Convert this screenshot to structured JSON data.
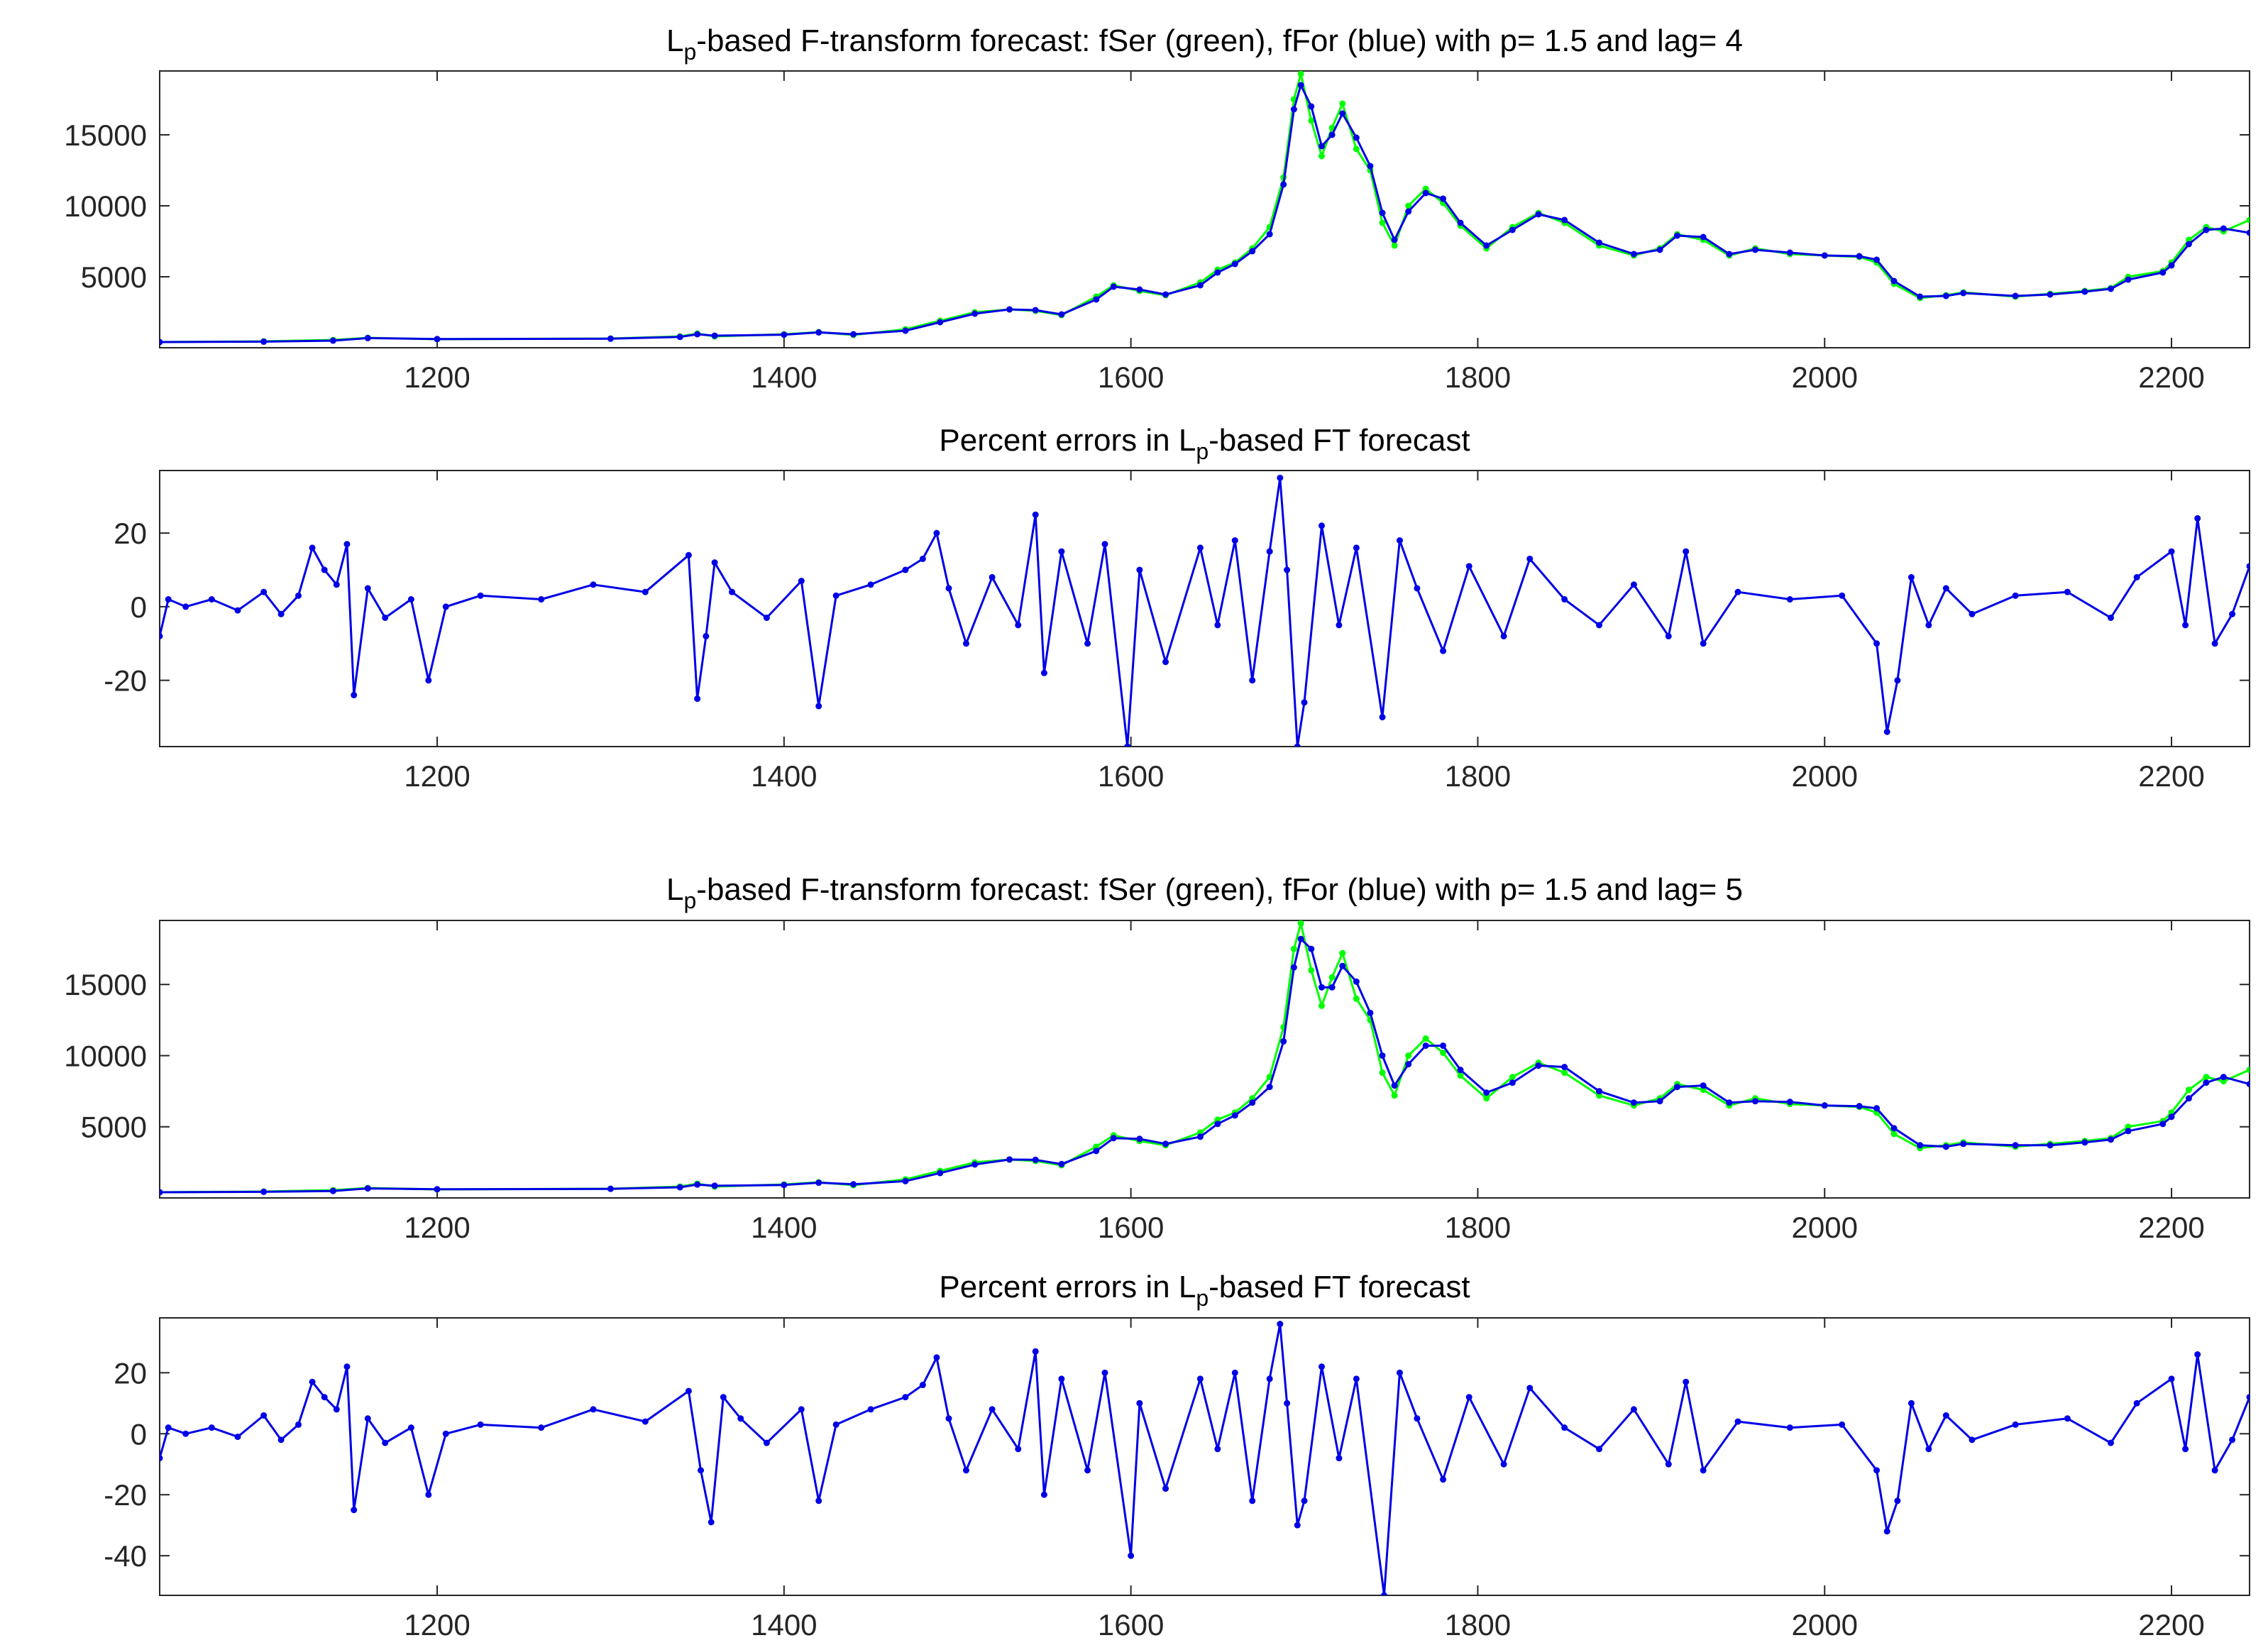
{
  "chart_data": [
    {
      "type": "line",
      "title_parts": [
        "L",
        "p",
        "-based F-transform forecast: fSer (green), fFor (blue)  with p= 1.5 and lag= 4"
      ],
      "xlim": [
        1040,
        2245
      ],
      "ylim": [
        0,
        19500
      ],
      "x_ticks": [
        1200,
        1400,
        1600,
        1800,
        2000,
        2200
      ],
      "y_ticks": [
        5000,
        10000,
        15000
      ],
      "grid": false,
      "series": [
        {
          "color": "#00ff00",
          "marker": "dot",
          "x": [
            1040,
            1100,
            1140,
            1160,
            1200,
            1300,
            1340,
            1350,
            1360,
            1400,
            1420,
            1440,
            1470,
            1490,
            1510,
            1530,
            1545,
            1560,
            1580,
            1590,
            1605,
            1620,
            1640,
            1650,
            1660,
            1670,
            1680,
            1688,
            1694,
            1698,
            1704,
            1710,
            1716,
            1722,
            1730,
            1738,
            1745,
            1752,
            1760,
            1770,
            1780,
            1790,
            1805,
            1820,
            1835,
            1850,
            1870,
            1890,
            1905,
            1915,
            1930,
            1945,
            1960,
            1980,
            2000,
            2020,
            2030,
            2040,
            2055,
            2070,
            2080,
            2110,
            2130,
            2150,
            2165,
            2175,
            2195,
            2200,
            2210,
            2220,
            2230,
            2245
          ],
          "y": [
            400,
            450,
            550,
            700,
            600,
            650,
            800,
            1000,
            800,
            950,
            1100,
            900,
            1300,
            1900,
            2500,
            2700,
            2600,
            2300,
            3600,
            4400,
            4000,
            3700,
            4600,
            5500,
            6000,
            7000,
            8500,
            12000,
            17500,
            19300,
            16000,
            13500,
            15500,
            17200,
            14000,
            12500,
            8800,
            7200,
            10000,
            11200,
            10200,
            8600,
            7000,
            8500,
            9500,
            8800,
            7200,
            6500,
            7000,
            8000,
            7600,
            6500,
            7000,
            6600,
            6500,
            6400,
            6000,
            4500,
            3500,
            3700,
            3900,
            3600,
            3800,
            4000,
            4200,
            5000,
            5400,
            6000,
            7600,
            8500,
            8200,
            9000
          ]
        },
        {
          "color": "#0000e6",
          "marker": "dot",
          "x": [
            1040,
            1100,
            1140,
            1160,
            1200,
            1300,
            1340,
            1350,
            1360,
            1400,
            1420,
            1440,
            1470,
            1490,
            1510,
            1530,
            1545,
            1560,
            1580,
            1590,
            1605,
            1620,
            1640,
            1650,
            1660,
            1670,
            1680,
            1688,
            1694,
            1698,
            1704,
            1710,
            1716,
            1722,
            1730,
            1738,
            1745,
            1752,
            1760,
            1770,
            1780,
            1790,
            1805,
            1820,
            1835,
            1850,
            1870,
            1890,
            1905,
            1915,
            1930,
            1945,
            1960,
            1980,
            2000,
            2020,
            2030,
            2040,
            2055,
            2070,
            2080,
            2110,
            2130,
            2150,
            2165,
            2175,
            2195,
            2200,
            2210,
            2220,
            2230,
            2245
          ],
          "y": [
            400,
            430,
            500,
            680,
            610,
            640,
            760,
            950,
            850,
            920,
            1080,
            950,
            1200,
            1800,
            2400,
            2700,
            2650,
            2350,
            3400,
            4300,
            4100,
            3750,
            4400,
            5300,
            5900,
            6800,
            8000,
            11500,
            16800,
            18500,
            17000,
            14200,
            15000,
            16500,
            14800,
            12800,
            9500,
            7600,
            9600,
            10900,
            10500,
            8800,
            7200,
            8300,
            9400,
            9000,
            7400,
            6600,
            6900,
            7900,
            7800,
            6600,
            6900,
            6700,
            6500,
            6450,
            6200,
            4700,
            3600,
            3650,
            3850,
            3650,
            3750,
            3950,
            4150,
            4800,
            5300,
            5800,
            7300,
            8300,
            8400,
            8100
          ]
        }
      ]
    },
    {
      "type": "line",
      "title_parts": [
        "Percent errors in L",
        "p",
        "-based FT forecast"
      ],
      "xlim": [
        1040,
        2245
      ],
      "ylim": [
        -38,
        37
      ],
      "x_ticks": [
        1200,
        1400,
        1600,
        1800,
        2000,
        2200
      ],
      "y_ticks": [
        -20,
        0,
        20
      ],
      "grid": false,
      "series": [
        {
          "color": "#0000e6",
          "marker": "dot",
          "x": [
            1040,
            1045,
            1055,
            1070,
            1085,
            1100,
            1110,
            1120,
            1128,
            1135,
            1142,
            1148,
            1152,
            1160,
            1170,
            1185,
            1195,
            1205,
            1225,
            1260,
            1290,
            1320,
            1345,
            1350,
            1355,
            1360,
            1370,
            1390,
            1410,
            1420,
            1430,
            1450,
            1470,
            1480,
            1488,
            1495,
            1505,
            1520,
            1535,
            1545,
            1550,
            1560,
            1575,
            1585,
            1598,
            1605,
            1620,
            1640,
            1650,
            1660,
            1670,
            1680,
            1686,
            1690,
            1696,
            1700,
            1710,
            1720,
            1730,
            1745,
            1755,
            1765,
            1780,
            1795,
            1815,
            1830,
            1850,
            1870,
            1890,
            1910,
            1920,
            1930,
            1950,
            1980,
            2010,
            2030,
            2036,
            2042,
            2050,
            2060,
            2070,
            2085,
            2110,
            2140,
            2165,
            2180,
            2200,
            2208,
            2215,
            2225,
            2235,
            2245
          ],
          "x_note": "",
          "y": [
            -8,
            2,
            0,
            2,
            -1,
            4,
            -2,
            3,
            16,
            10,
            6,
            17,
            -24,
            5,
            -3,
            2,
            -20,
            0,
            3,
            2,
            6,
            4,
            14,
            -25,
            -8,
            12,
            4,
            -3,
            7,
            -27,
            3,
            6,
            10,
            13,
            20,
            5,
            -10,
            8,
            -5,
            25,
            -18,
            15,
            -10,
            17,
            -38,
            10,
            -15,
            16,
            -5,
            18,
            -20,
            15,
            35,
            10,
            -38,
            -26,
            22,
            -5,
            16,
            -30,
            18,
            5,
            -12,
            11,
            -8,
            13,
            2,
            -5,
            6,
            -8,
            15,
            -10,
            4,
            2,
            3,
            -10,
            -34,
            -20,
            8,
            -5,
            5,
            -2,
            3,
            4,
            -3,
            8,
            15,
            -5,
            24,
            -10,
            -2,
            11
          ]
        }
      ]
    },
    {
      "type": "line",
      "title_parts": [
        "L",
        "p",
        "-based F-transform forecast: fSer (green), fFor (blue)  with p= 1.5 and lag= 5"
      ],
      "xlim": [
        1040,
        2245
      ],
      "ylim": [
        0,
        19500
      ],
      "x_ticks": [
        1200,
        1400,
        1600,
        1800,
        2000,
        2200
      ],
      "y_ticks": [
        5000,
        10000,
        15000
      ],
      "grid": false,
      "series": [
        {
          "color": "#00ff00",
          "marker": "dot",
          "x": [
            1040,
            1100,
            1140,
            1160,
            1200,
            1300,
            1340,
            1350,
            1360,
            1400,
            1420,
            1440,
            1470,
            1490,
            1510,
            1530,
            1545,
            1560,
            1580,
            1590,
            1605,
            1620,
            1640,
            1650,
            1660,
            1670,
            1680,
            1688,
            1694,
            1698,
            1704,
            1710,
            1716,
            1722,
            1730,
            1738,
            1745,
            1752,
            1760,
            1770,
            1780,
            1790,
            1805,
            1820,
            1835,
            1850,
            1870,
            1890,
            1905,
            1915,
            1930,
            1945,
            1960,
            1980,
            2000,
            2020,
            2030,
            2040,
            2055,
            2070,
            2080,
            2110,
            2130,
            2150,
            2165,
            2175,
            2195,
            2200,
            2210,
            2220,
            2230,
            2245
          ],
          "y": [
            400,
            450,
            550,
            700,
            600,
            650,
            800,
            1000,
            800,
            950,
            1100,
            900,
            1300,
            1900,
            2500,
            2700,
            2600,
            2300,
            3600,
            4400,
            4000,
            3700,
            4600,
            5500,
            6000,
            7000,
            8500,
            12000,
            17500,
            19300,
            16000,
            13500,
            15500,
            17200,
            14000,
            12500,
            8800,
            7200,
            10000,
            11200,
            10200,
            8600,
            7000,
            8500,
            9500,
            8800,
            7200,
            6500,
            7000,
            8000,
            7600,
            6500,
            7000,
            6600,
            6500,
            6400,
            6000,
            4500,
            3500,
            3700,
            3900,
            3600,
            3800,
            4000,
            4200,
            5000,
            5400,
            6000,
            7600,
            8500,
            8200,
            9000
          ]
        },
        {
          "color": "#0000e6",
          "marker": "dot",
          "x": [
            1040,
            1100,
            1140,
            1160,
            1200,
            1300,
            1340,
            1350,
            1360,
            1400,
            1420,
            1440,
            1470,
            1490,
            1510,
            1530,
            1545,
            1560,
            1580,
            1590,
            1605,
            1620,
            1640,
            1650,
            1660,
            1670,
            1680,
            1688,
            1694,
            1698,
            1704,
            1710,
            1716,
            1722,
            1730,
            1738,
            1745,
            1752,
            1760,
            1770,
            1780,
            1790,
            1805,
            1820,
            1835,
            1850,
            1870,
            1890,
            1905,
            1915,
            1930,
            1945,
            1960,
            1980,
            2000,
            2020,
            2030,
            2040,
            2055,
            2070,
            2080,
            2110,
            2130,
            2150,
            2165,
            2175,
            2195,
            2200,
            2210,
            2220,
            2230,
            2245
          ],
          "y": [
            400,
            430,
            490,
            670,
            610,
            640,
            750,
            940,
            860,
            910,
            1070,
            960,
            1180,
            1750,
            2350,
            2700,
            2680,
            2380,
            3300,
            4200,
            4150,
            3800,
            4300,
            5200,
            5800,
            6700,
            7800,
            11000,
            16200,
            18200,
            17500,
            14800,
            14800,
            16300,
            15200,
            13000,
            10000,
            7900,
            9400,
            10700,
            10700,
            9000,
            7400,
            8100,
            9300,
            9200,
            7500,
            6700,
            6800,
            7800,
            7900,
            6700,
            6800,
            6750,
            6500,
            6450,
            6300,
            4900,
            3700,
            3600,
            3800,
            3700,
            3700,
            3900,
            4100,
            4700,
            5200,
            5700,
            7000,
            8100,
            8500,
            8000
          ]
        }
      ]
    },
    {
      "type": "line",
      "title_parts": [
        "Percent errors in L",
        "p",
        "-based FT forecast"
      ],
      "xlim": [
        1040,
        2245
      ],
      "ylim": [
        -53,
        38
      ],
      "x_ticks": [
        1200,
        1400,
        1600,
        1800,
        2000,
        2200
      ],
      "y_ticks": [
        -40,
        -20,
        0,
        20
      ],
      "grid": false,
      "series": [
        {
          "color": "#0000e6",
          "marker": "dot",
          "x": [
            1040,
            1045,
            1055,
            1070,
            1085,
            1100,
            1110,
            1120,
            1128,
            1135,
            1142,
            1148,
            1152,
            1160,
            1170,
            1185,
            1195,
            1205,
            1225,
            1260,
            1290,
            1320,
            1345,
            1352,
            1358,
            1365,
            1375,
            1390,
            1410,
            1420,
            1430,
            1450,
            1470,
            1480,
            1488,
            1495,
            1505,
            1520,
            1535,
            1545,
            1550,
            1560,
            1575,
            1585,
            1600,
            1605,
            1620,
            1640,
            1650,
            1660,
            1670,
            1680,
            1686,
            1690,
            1696,
            1700,
            1710,
            1720,
            1730,
            1746,
            1755,
            1765,
            1780,
            1795,
            1815,
            1830,
            1850,
            1870,
            1890,
            1910,
            1920,
            1930,
            1950,
            1980,
            2010,
            2030,
            2036,
            2042,
            2050,
            2060,
            2070,
            2085,
            2110,
            2140,
            2165,
            2180,
            2200,
            2208,
            2215,
            2225,
            2235,
            2245
          ],
          "y": [
            -8,
            2,
            0,
            2,
            -1,
            6,
            -2,
            3,
            17,
            12,
            8,
            22,
            -25,
            5,
            -3,
            2,
            -20,
            0,
            3,
            2,
            8,
            4,
            14,
            -12,
            -29,
            12,
            5,
            -3,
            8,
            -22,
            3,
            8,
            12,
            16,
            25,
            5,
            -12,
            8,
            -5,
            27,
            -20,
            18,
            -12,
            20,
            -40,
            10,
            -18,
            18,
            -5,
            20,
            -22,
            18,
            36,
            10,
            -30,
            -22,
            22,
            -8,
            18,
            -53,
            20,
            5,
            -15,
            12,
            -10,
            15,
            2,
            -5,
            8,
            -10,
            17,
            -12,
            4,
            2,
            3,
            -12,
            -32,
            -22,
            10,
            -5,
            6,
            -2,
            3,
            5,
            -3,
            10,
            18,
            -5,
            26,
            -12,
            -2,
            12
          ]
        }
      ]
    }
  ]
}
